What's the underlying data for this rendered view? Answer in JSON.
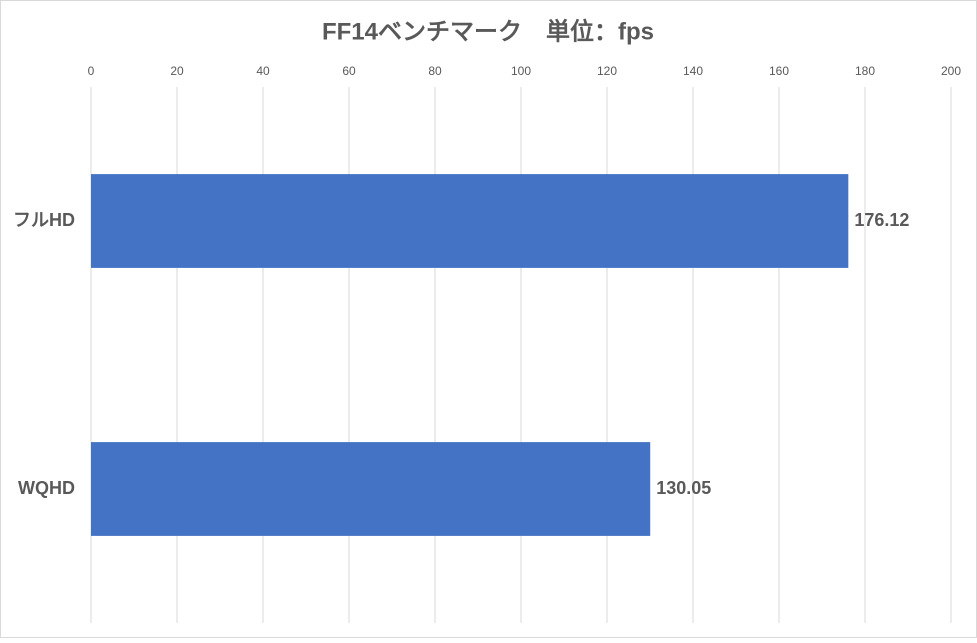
{
  "chart_data": {
    "type": "bar",
    "orientation": "horizontal",
    "title": "FF14ベンチマーク　単位：fps",
    "categories": [
      "フルHD",
      "WQHD"
    ],
    "values": [
      176.12,
      130.05
    ],
    "color": "#4472c4",
    "xlim": [
      0,
      200
    ],
    "xticks": [
      0,
      20,
      40,
      60,
      80,
      100,
      120,
      140,
      160,
      180,
      200
    ],
    "grid": true
  }
}
